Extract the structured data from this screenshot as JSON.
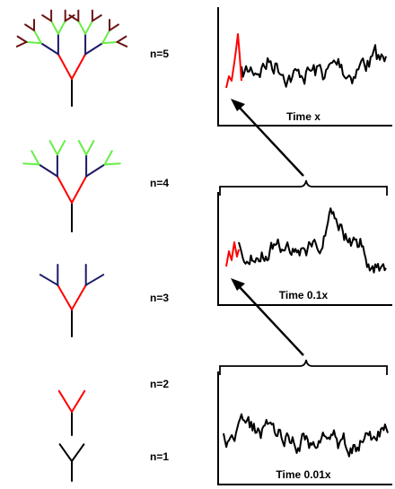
{
  "colors": {
    "level1": "#000000",
    "level2": "#ff0000",
    "level3": "#1a1a66",
    "level4": "#66ee44",
    "level5": "#6b1414",
    "series": "#000000",
    "highlight": "#ff0000"
  },
  "levels": [
    {
      "label": "n=1"
    },
    {
      "label": "n=2"
    },
    {
      "label": "n=3"
    },
    {
      "label": "n=4"
    },
    {
      "label": "n=5"
    }
  ],
  "panels": [
    {
      "caption": "Time x"
    },
    {
      "caption": "Time 0.1x"
    },
    {
      "caption": "Time 0.01x"
    }
  ]
}
